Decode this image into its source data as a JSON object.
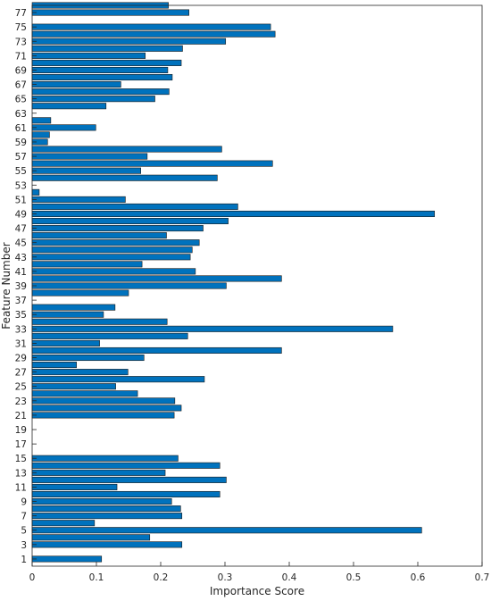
{
  "chart_data": {
    "type": "bar",
    "orientation": "horizontal",
    "xlabel": "Importance Score",
    "ylabel": "Feature Number",
    "xlim": [
      0,
      0.7
    ],
    "ylim": [
      0,
      78
    ],
    "x_ticks": [
      0,
      0.1,
      0.2,
      0.3,
      0.4,
      0.5,
      0.6,
      0.7
    ],
    "x_tick_labels": [
      "0",
      "0.1",
      "0.2",
      "0.3",
      "0.4",
      "0.5",
      "0.6",
      "0.7"
    ],
    "y_ticks": [
      1,
      3,
      5,
      7,
      9,
      11,
      13,
      15,
      17,
      19,
      21,
      23,
      25,
      27,
      29,
      31,
      33,
      35,
      37,
      39,
      41,
      43,
      45,
      47,
      49,
      51,
      53,
      55,
      57,
      59,
      61,
      63,
      65,
      67,
      69,
      71,
      73,
      75,
      77
    ],
    "grid": false,
    "legend": "none",
    "bar_color": "#0072BD",
    "bar_edge_color": "#1a1a1a",
    "features": [
      1,
      2,
      3,
      4,
      5,
      6,
      7,
      8,
      9,
      10,
      11,
      12,
      13,
      14,
      15,
      16,
      17,
      18,
      19,
      20,
      21,
      22,
      23,
      24,
      25,
      26,
      27,
      28,
      29,
      30,
      31,
      32,
      33,
      34,
      35,
      36,
      37,
      38,
      39,
      40,
      41,
      42,
      43,
      44,
      45,
      46,
      47,
      48,
      49,
      50,
      51,
      52,
      53,
      54,
      55,
      56,
      57,
      58,
      59,
      60,
      61,
      62,
      63,
      64,
      65,
      66,
      67,
      68,
      69,
      70,
      71,
      72,
      73,
      74,
      75,
      76,
      77,
      78
    ],
    "values": [
      0.108,
      0,
      0.233,
      0.183,
      0.606,
      0.097,
      0.233,
      0.231,
      0.217,
      0.292,
      0.132,
      0.302,
      0.207,
      0.292,
      0.227,
      0,
      0,
      0,
      0,
      0,
      0.221,
      0.232,
      0.222,
      0.164,
      0.13,
      0.268,
      0.149,
      0.069,
      0.174,
      0.388,
      0.105,
      0.242,
      0.561,
      0.21,
      0.111,
      0.129,
      0,
      0.15,
      0.302,
      0.388,
      0.254,
      0.171,
      0.246,
      0.249,
      0.26,
      0.209,
      0.266,
      0.305,
      0.626,
      0.32,
      0.145,
      0.011,
      0,
      0.288,
      0.169,
      0.374,
      0.179,
      0.295,
      0.024,
      0.027,
      0.099,
      0.029,
      0,
      0.115,
      0.191,
      0.213,
      0.138,
      0.218,
      0.211,
      0.232,
      0.176,
      0.234,
      0.301,
      0.378,
      0.371,
      0,
      0.244,
      0.212
    ]
  }
}
